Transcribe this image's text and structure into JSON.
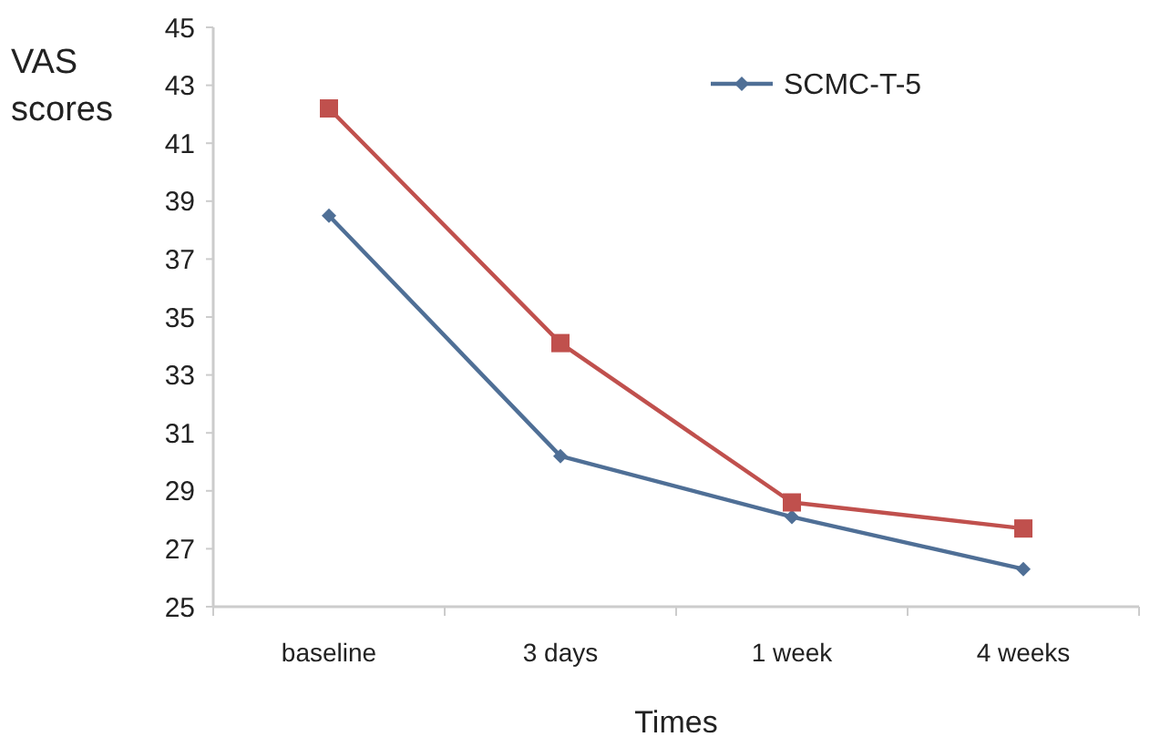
{
  "chart_data": {
    "type": "line",
    "xlabel": "Times",
    "ylabel": "VAS scores",
    "categories": [
      "baseline",
      "3 days",
      "1 week",
      "4 weeks"
    ],
    "series": [
      {
        "name": "SCMC-T-5",
        "color": "#4f6f96",
        "values": [
          38.5,
          30.2,
          28.1,
          26.3
        ],
        "marker": "diamond"
      },
      {
        "color": "#c0504d",
        "values": [
          42.2,
          34.1,
          28.6,
          27.7
        ],
        "marker": "square"
      }
    ],
    "ylim": [
      25,
      45
    ],
    "yticks": [
      25,
      27,
      29,
      31,
      33,
      35,
      37,
      39,
      41,
      43,
      45
    ],
    "legend": "top right",
    "grid": false
  }
}
